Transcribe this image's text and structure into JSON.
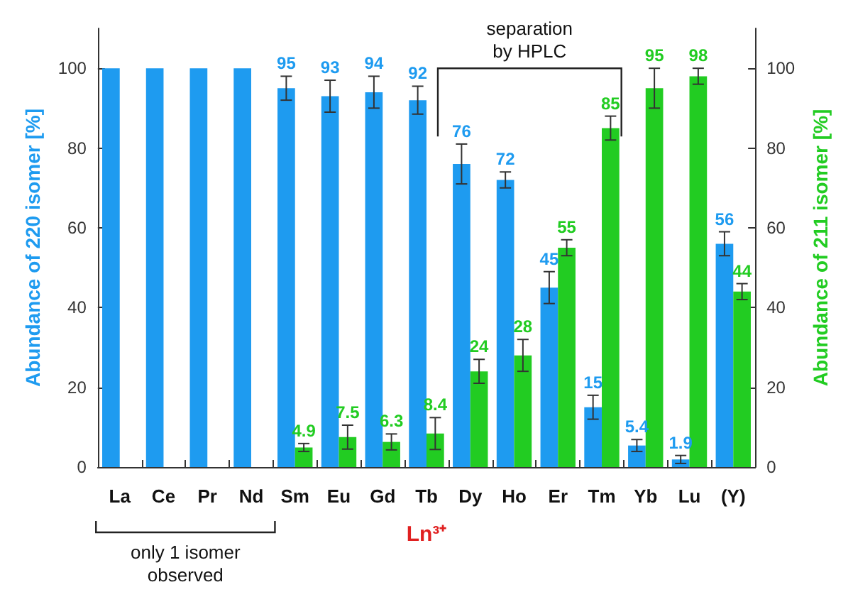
{
  "chart_data": {
    "type": "bar",
    "categories": [
      "La",
      "Ce",
      "Pr",
      "Nd",
      "Sm",
      "Eu",
      "Gd",
      "Tb",
      "Dy",
      "Ho",
      "Er",
      "Tm",
      "Yb",
      "Lu",
      "(Y)"
    ],
    "series": [
      {
        "color": "#1e9bf0",
        "values": [
          100,
          100,
          100,
          100,
          95,
          93,
          94,
          92,
          76,
          72,
          45,
          15,
          5.4,
          1.9,
          56
        ],
        "value_labels": [
          null,
          null,
          null,
          null,
          "95",
          "93",
          "94",
          "92",
          "76",
          "72",
          "45",
          "15",
          "5.4",
          "1.9",
          "56"
        ],
        "errors": [
          null,
          null,
          null,
          null,
          3,
          4,
          4,
          3.5,
          5,
          2,
          4,
          3,
          1.5,
          1,
          3
        ]
      },
      {
        "color": "#22cc22",
        "axis": "y2",
        "values": [
          null,
          null,
          null,
          null,
          4.9,
          7.5,
          6.3,
          8.4,
          24,
          28,
          55,
          85,
          95,
          98,
          44
        ],
        "value_labels": [
          null,
          null,
          null,
          null,
          "4.9",
          "7.5",
          "6.3",
          "8.4",
          "24",
          "28",
          "55",
          "85",
          "95",
          "98",
          "44"
        ],
        "errors": [
          null,
          null,
          null,
          null,
          1,
          3,
          2,
          4,
          3,
          4,
          2,
          3,
          5,
          2,
          2
        ]
      }
    ],
    "xlabel": "Ln³⁺",
    "ylabel": "Abundance of 220 isomer [%]",
    "y2label": "Abundance of 211 isomer [%]",
    "ylim": [
      0,
      110
    ],
    "yticks": [
      0,
      20,
      40,
      60,
      80,
      100
    ],
    "y2lim": [
      0,
      110
    ],
    "y2ticks": [
      0,
      20,
      40,
      60,
      80,
      100
    ],
    "annotations": [
      "separation\nby HPLC",
      "only 1 isomer\nobserved"
    ],
    "grid": false
  }
}
